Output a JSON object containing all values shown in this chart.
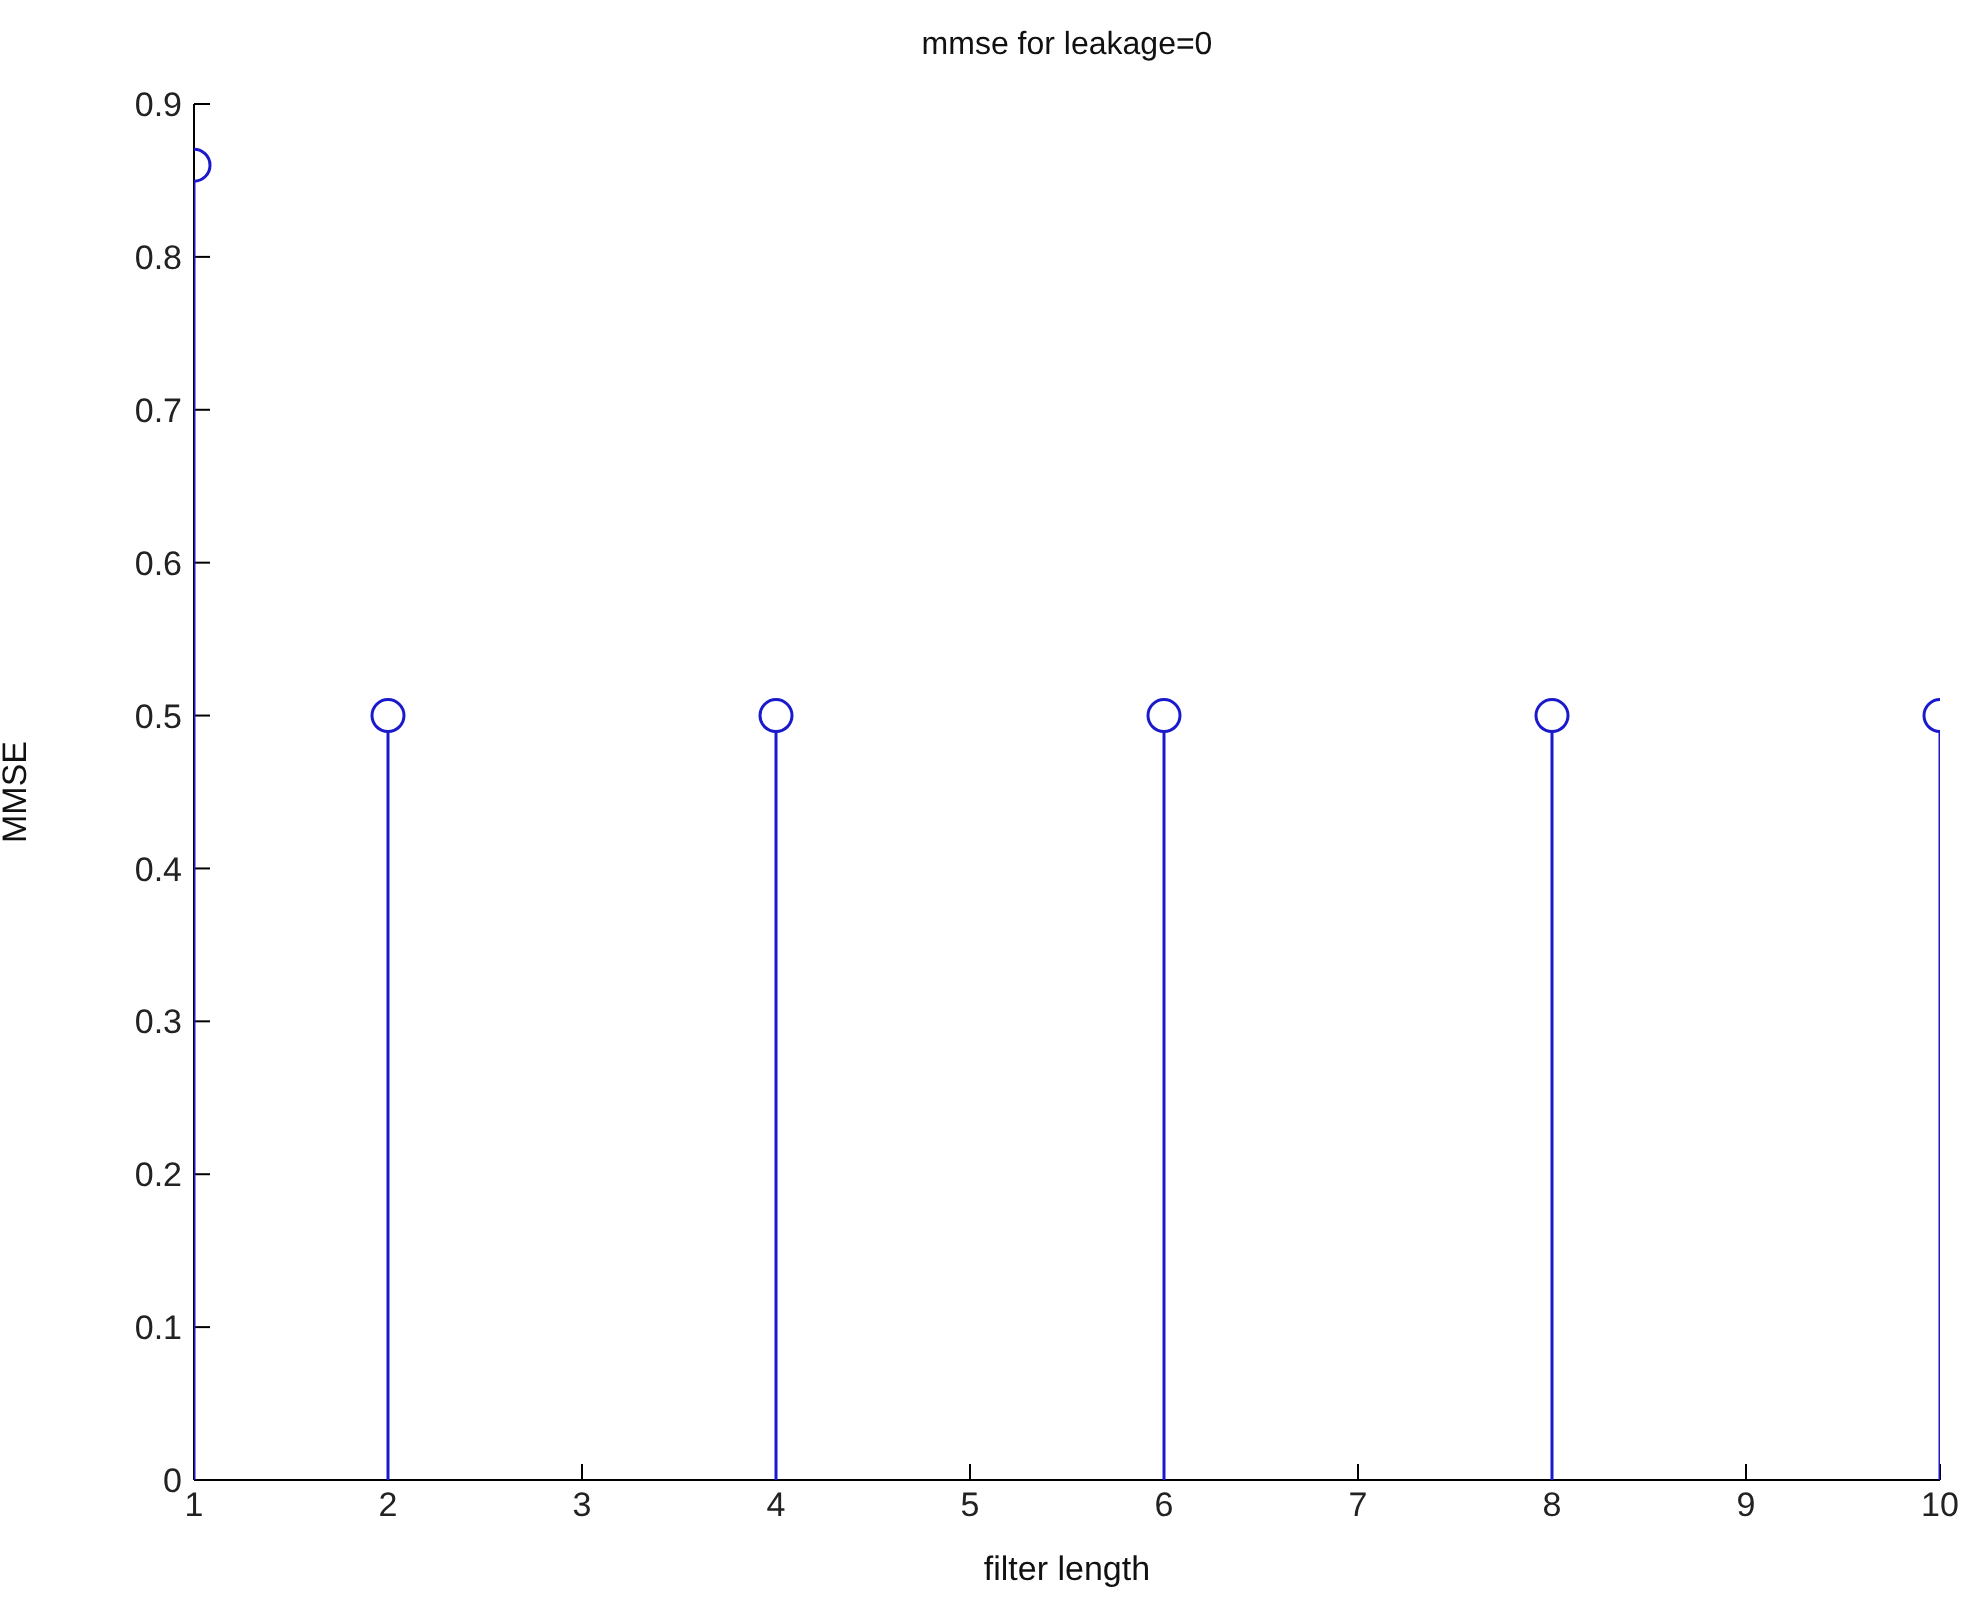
{
  "chart_data": {
    "type": "lollipop",
    "title": "mmse for leakage=0",
    "xlabel": "filter length",
    "ylabel": "MMSE",
    "x": [
      1,
      2,
      4,
      6,
      8,
      10
    ],
    "values": [
      0.86,
      0.5,
      0.5,
      0.5,
      0.5,
      0.5
    ],
    "color": "#1a1acc",
    "marker": "circle",
    "xlim": [
      1,
      10
    ],
    "xticks": [
      1,
      2,
      3,
      4,
      5,
      6,
      7,
      8,
      9,
      10
    ],
    "ylim": [
      0,
      0.9
    ],
    "yticks": [
      0,
      0.1,
      0.2,
      0.3,
      0.4,
      0.5,
      0.6,
      0.7,
      0.8,
      0.9
    ],
    "grid": false
  }
}
